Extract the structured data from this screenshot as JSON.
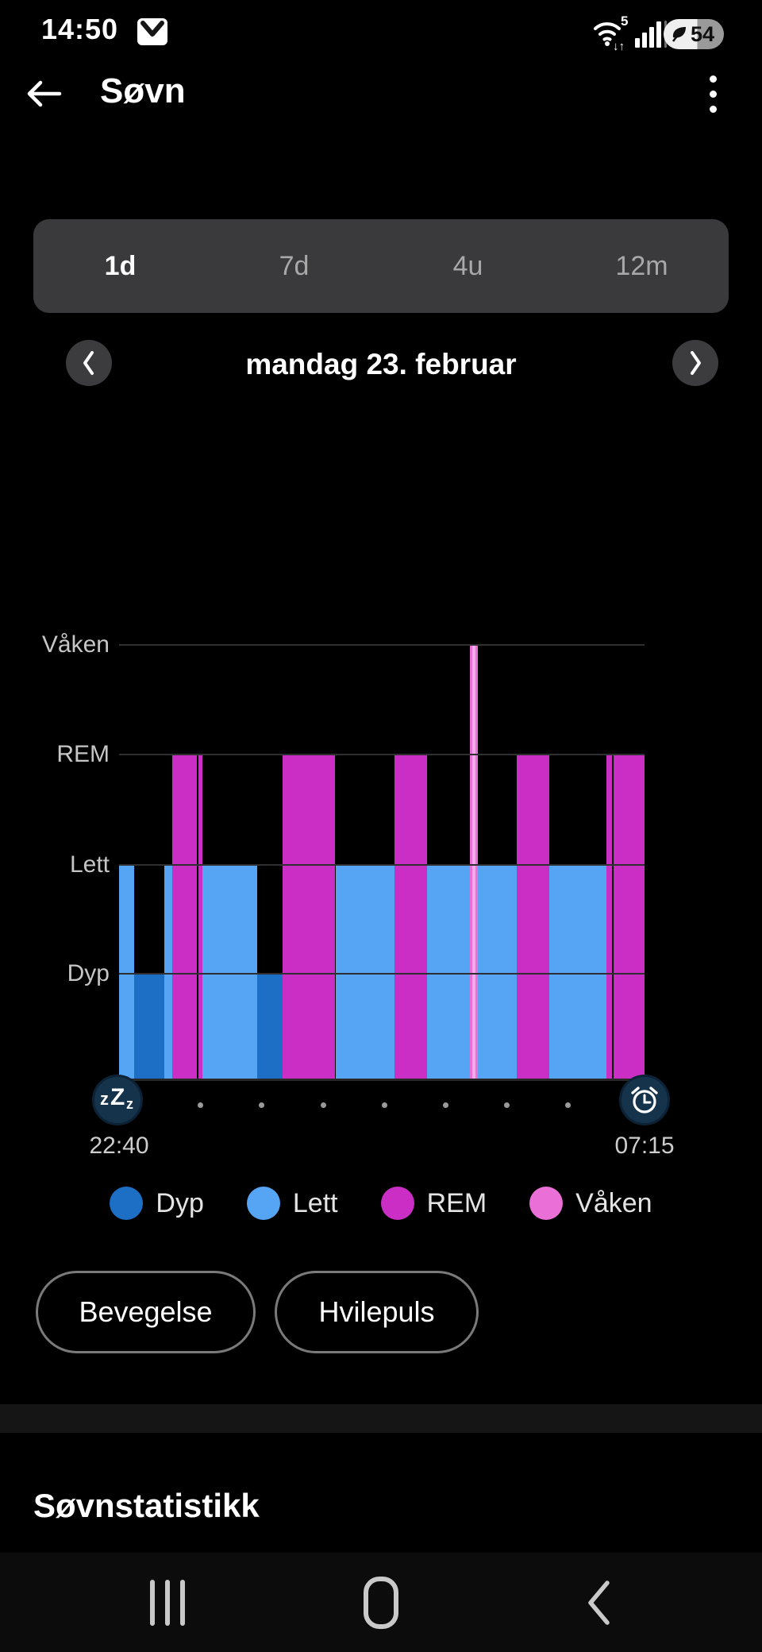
{
  "status_bar": {
    "time": "14:50",
    "battery_level": "54",
    "wifi_badge": "5",
    "wifi_arrows": "↓↑"
  },
  "header": {
    "title": "Søvn"
  },
  "range_tabs": [
    {
      "label": "1d",
      "selected": true
    },
    {
      "label": "7d",
      "selected": false
    },
    {
      "label": "4u",
      "selected": false
    },
    {
      "label": "12m",
      "selected": false
    }
  ],
  "date_nav": {
    "date_label": "mandag 23. februar"
  },
  "chart": {
    "type": "sleep-stage-timeline",
    "start_label": "22:40",
    "end_label": "07:15",
    "y_axis": [
      {
        "stage": "vaken",
        "label": "Våken"
      },
      {
        "stage": "rem",
        "label": "REM"
      },
      {
        "stage": "lett",
        "label": "Lett"
      },
      {
        "stage": "dyp",
        "label": "Dyp"
      }
    ],
    "stages": {
      "dyp": {
        "label": "Dyp",
        "color": "#1d6ec5"
      },
      "lett": {
        "label": "Lett",
        "color": "#56a5f4"
      },
      "rem": {
        "label": "REM",
        "color": "#ca2ec5"
      },
      "vaken": {
        "label": "Våken",
        "color": "#ea6fd6",
        "highlight": "#f5abe9"
      }
    },
    "segments": [
      {
        "stage": "lett",
        "from": "22:40",
        "to": "22:55"
      },
      {
        "stage": "dyp",
        "from": "22:55",
        "to": "23:24"
      },
      {
        "stage": "lett",
        "from": "23:24",
        "to": "23:32"
      },
      {
        "stage": "rem",
        "from": "23:32",
        "to": "23:56"
      },
      {
        "stage": "gap",
        "from": "23:56",
        "to": "23:58"
      },
      {
        "stage": "rem",
        "from": "23:58",
        "to": "00:02"
      },
      {
        "stage": "lett",
        "from": "00:02",
        "to": "00:55"
      },
      {
        "stage": "dyp",
        "from": "00:55",
        "to": "01:20"
      },
      {
        "stage": "rem",
        "from": "01:20",
        "to": "02:12"
      },
      {
        "stage": "lett",
        "from": "02:12",
        "to": "03:10"
      },
      {
        "stage": "rem",
        "from": "03:10",
        "to": "03:42"
      },
      {
        "stage": "lett",
        "from": "03:42",
        "to": "04:24"
      },
      {
        "stage": "vaken",
        "from": "04:24",
        "to": "04:32"
      },
      {
        "stage": "lett",
        "from": "04:32",
        "to": "05:10"
      },
      {
        "stage": "rem",
        "from": "05:10",
        "to": "05:42"
      },
      {
        "stage": "lett",
        "from": "05:42",
        "to": "06:38"
      },
      {
        "stage": "rem",
        "from": "06:38",
        "to": "06:43"
      },
      {
        "stage": "gap",
        "from": "06:43",
        "to": "06:45"
      },
      {
        "stage": "rem",
        "from": "06:45",
        "to": "07:15"
      }
    ]
  },
  "legend": {
    "order": [
      "dyp",
      "lett",
      "rem",
      "vaken"
    ]
  },
  "action_buttons": [
    "Bevegelse",
    "Hvilepuls"
  ],
  "section_title": "Søvnstatistikk",
  "icons": {
    "status_bar": [
      "mail-icon",
      "wifi-icon",
      "signal-icon",
      "battery-leaf-icon"
    ],
    "header": [
      "back-arrow-icon",
      "kebab-menu-icon"
    ],
    "date_nav": [
      "chevron-left-icon",
      "chevron-right-icon"
    ],
    "chart": [
      "zzz-icon",
      "alarm-clock-icon"
    ],
    "nav_bar": [
      "recents-icon",
      "home-icon",
      "back-chevron-icon"
    ]
  }
}
